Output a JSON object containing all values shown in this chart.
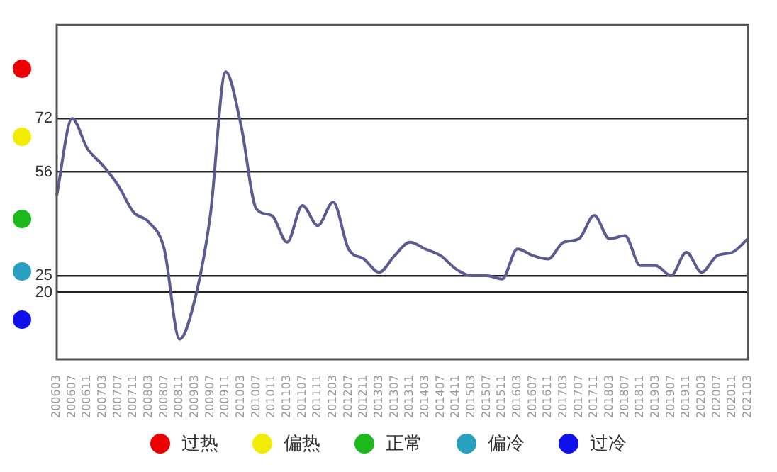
{
  "chart_data": {
    "type": "line",
    "categories": [
      "200603",
      "200607",
      "200611",
      "200703",
      "200707",
      "200711",
      "200803",
      "200807",
      "200811",
      "200903",
      "200907",
      "200911",
      "201003",
      "201007",
      "201011",
      "201103",
      "201107",
      "201111",
      "201203",
      "201207",
      "201211",
      "201303",
      "201307",
      "201311",
      "201403",
      "201407",
      "201411",
      "201503",
      "201507",
      "201511",
      "201603",
      "201607",
      "201611",
      "201703",
      "201707",
      "201711",
      "201803",
      "201807",
      "201811",
      "201903",
      "201907",
      "201911",
      "202003",
      "202007",
      "202011",
      "202103"
    ],
    "series": [
      {
        "color": "#5b5b92",
        "values": [
          49,
          72,
          63,
          58,
          52,
          44,
          41,
          33,
          6,
          18,
          43,
          86,
          70,
          45,
          43,
          35,
          46,
          40,
          47,
          33,
          30,
          26,
          31,
          35,
          33,
          31,
          27,
          25,
          25,
          24,
          33,
          31,
          30,
          35,
          36,
          43,
          36,
          37,
          28,
          28,
          25,
          32,
          26,
          31,
          32,
          36
        ]
      }
    ],
    "ylim": [
      0,
      100
    ],
    "yticks": [
      20,
      25,
      56,
      72
    ],
    "grid": "y",
    "legend": false,
    "marker": "none",
    "line_style": "solid",
    "annotations": [
      "过热",
      "偏热",
      "正常",
      "偏冷",
      "过冷"
    ]
  }
}
